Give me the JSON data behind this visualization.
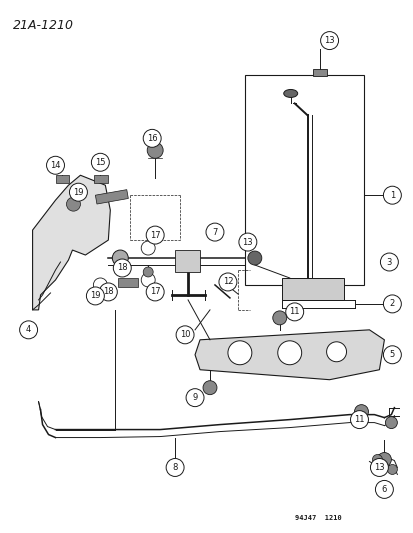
{
  "title": "21A-1210",
  "footer": "94J47  1210",
  "background_color": "#ffffff",
  "line_color": "#1a1a1a",
  "fig_width": 4.14,
  "fig_height": 5.33,
  "dpi": 100
}
